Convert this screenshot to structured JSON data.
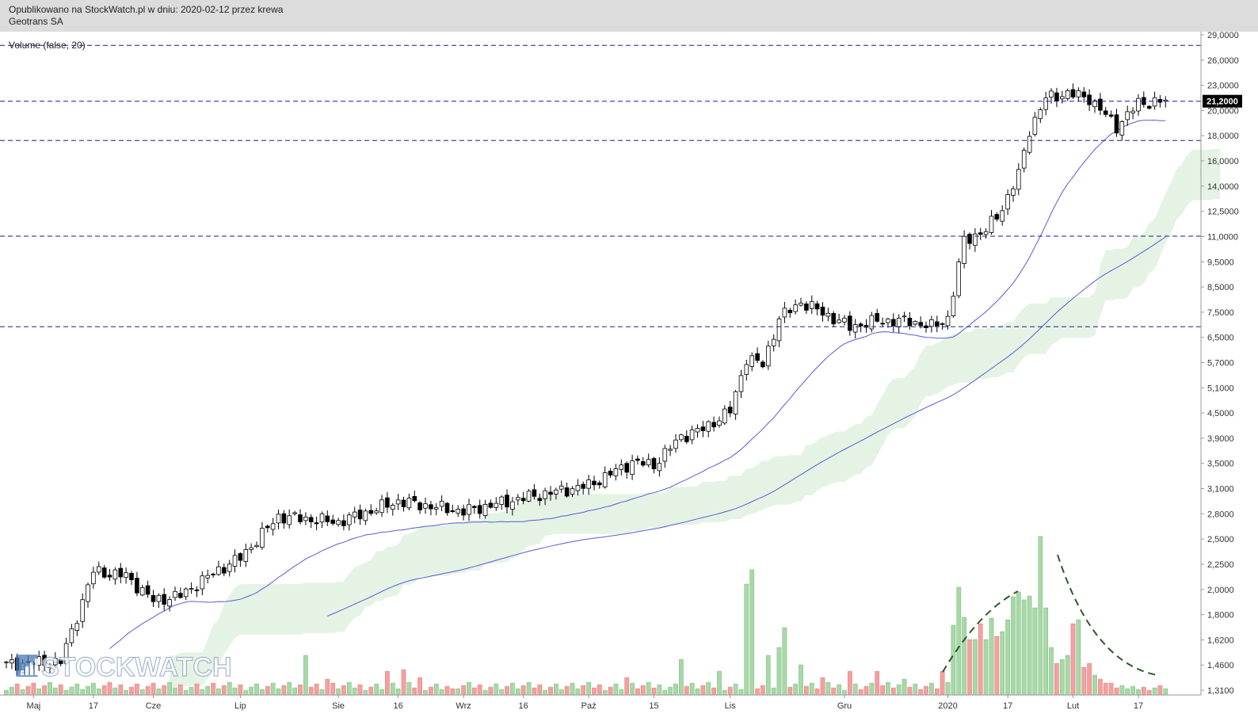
{
  "header": {
    "publication": "Opublikowano na StockWatch.pl w dniu: 2020-02-12 przez krewa",
    "company": "Geotrans SA"
  },
  "watermark": "STOCKWATCH",
  "chart_data": {
    "type": "candlestick",
    "title": "",
    "indicator_label": "Volume (false, 20)",
    "y_scale": "log",
    "ylim": [
      1.31,
      29.0
    ],
    "y_ticks": [
      "29,0000",
      "26,0000",
      "23,0000",
      "20,0000",
      "18,0000",
      "16,0000",
      "14,0000",
      "12,5000",
      "11,0000",
      "9,5000",
      "8,5000",
      "7,5000",
      "6,5000",
      "5,7000",
      "5,1000",
      "4,5000",
      "3,9000",
      "3,5000",
      "3,1000",
      "2,8000",
      "2,5000",
      "2,2500",
      "2,0000",
      "1,8000",
      "1,6200",
      "1,4600",
      "1,3100"
    ],
    "y_tick_values": [
      29.0,
      26.0,
      23.0,
      20.0,
      18.0,
      16.0,
      14.0,
      12.5,
      11.0,
      9.5,
      8.5,
      7.5,
      6.5,
      5.7,
      5.1,
      4.5,
      3.9,
      3.5,
      3.1,
      2.8,
      2.5,
      2.25,
      2.0,
      1.8,
      1.62,
      1.46,
      1.31
    ],
    "x_ticks": [
      "Maj",
      "17",
      "Cze",
      "Lip",
      "Sie",
      "16",
      "Wrz",
      "16",
      "Paź",
      "15",
      "Lis",
      "Gru",
      "2020",
      "17",
      "Lut",
      "17"
    ],
    "x_tick_index": [
      5,
      16,
      27,
      43,
      61,
      72,
      84,
      95,
      107,
      119,
      133,
      154,
      173,
      184,
      196,
      208
    ],
    "last_price": 21.2,
    "last_price_label": "21,2000",
    "support_resistance_levels": [
      27.6,
      21.2,
      17.6,
      11.2,
      7.3
    ],
    "colors": {
      "volume_up": "#a8d8a8",
      "volume_down": "#f4a0a0",
      "sma": "#5a5ad8",
      "cloud": "#e2f2e2",
      "levels": "#1a1a99",
      "trend_curve": "#2a5a2a"
    }
  }
}
